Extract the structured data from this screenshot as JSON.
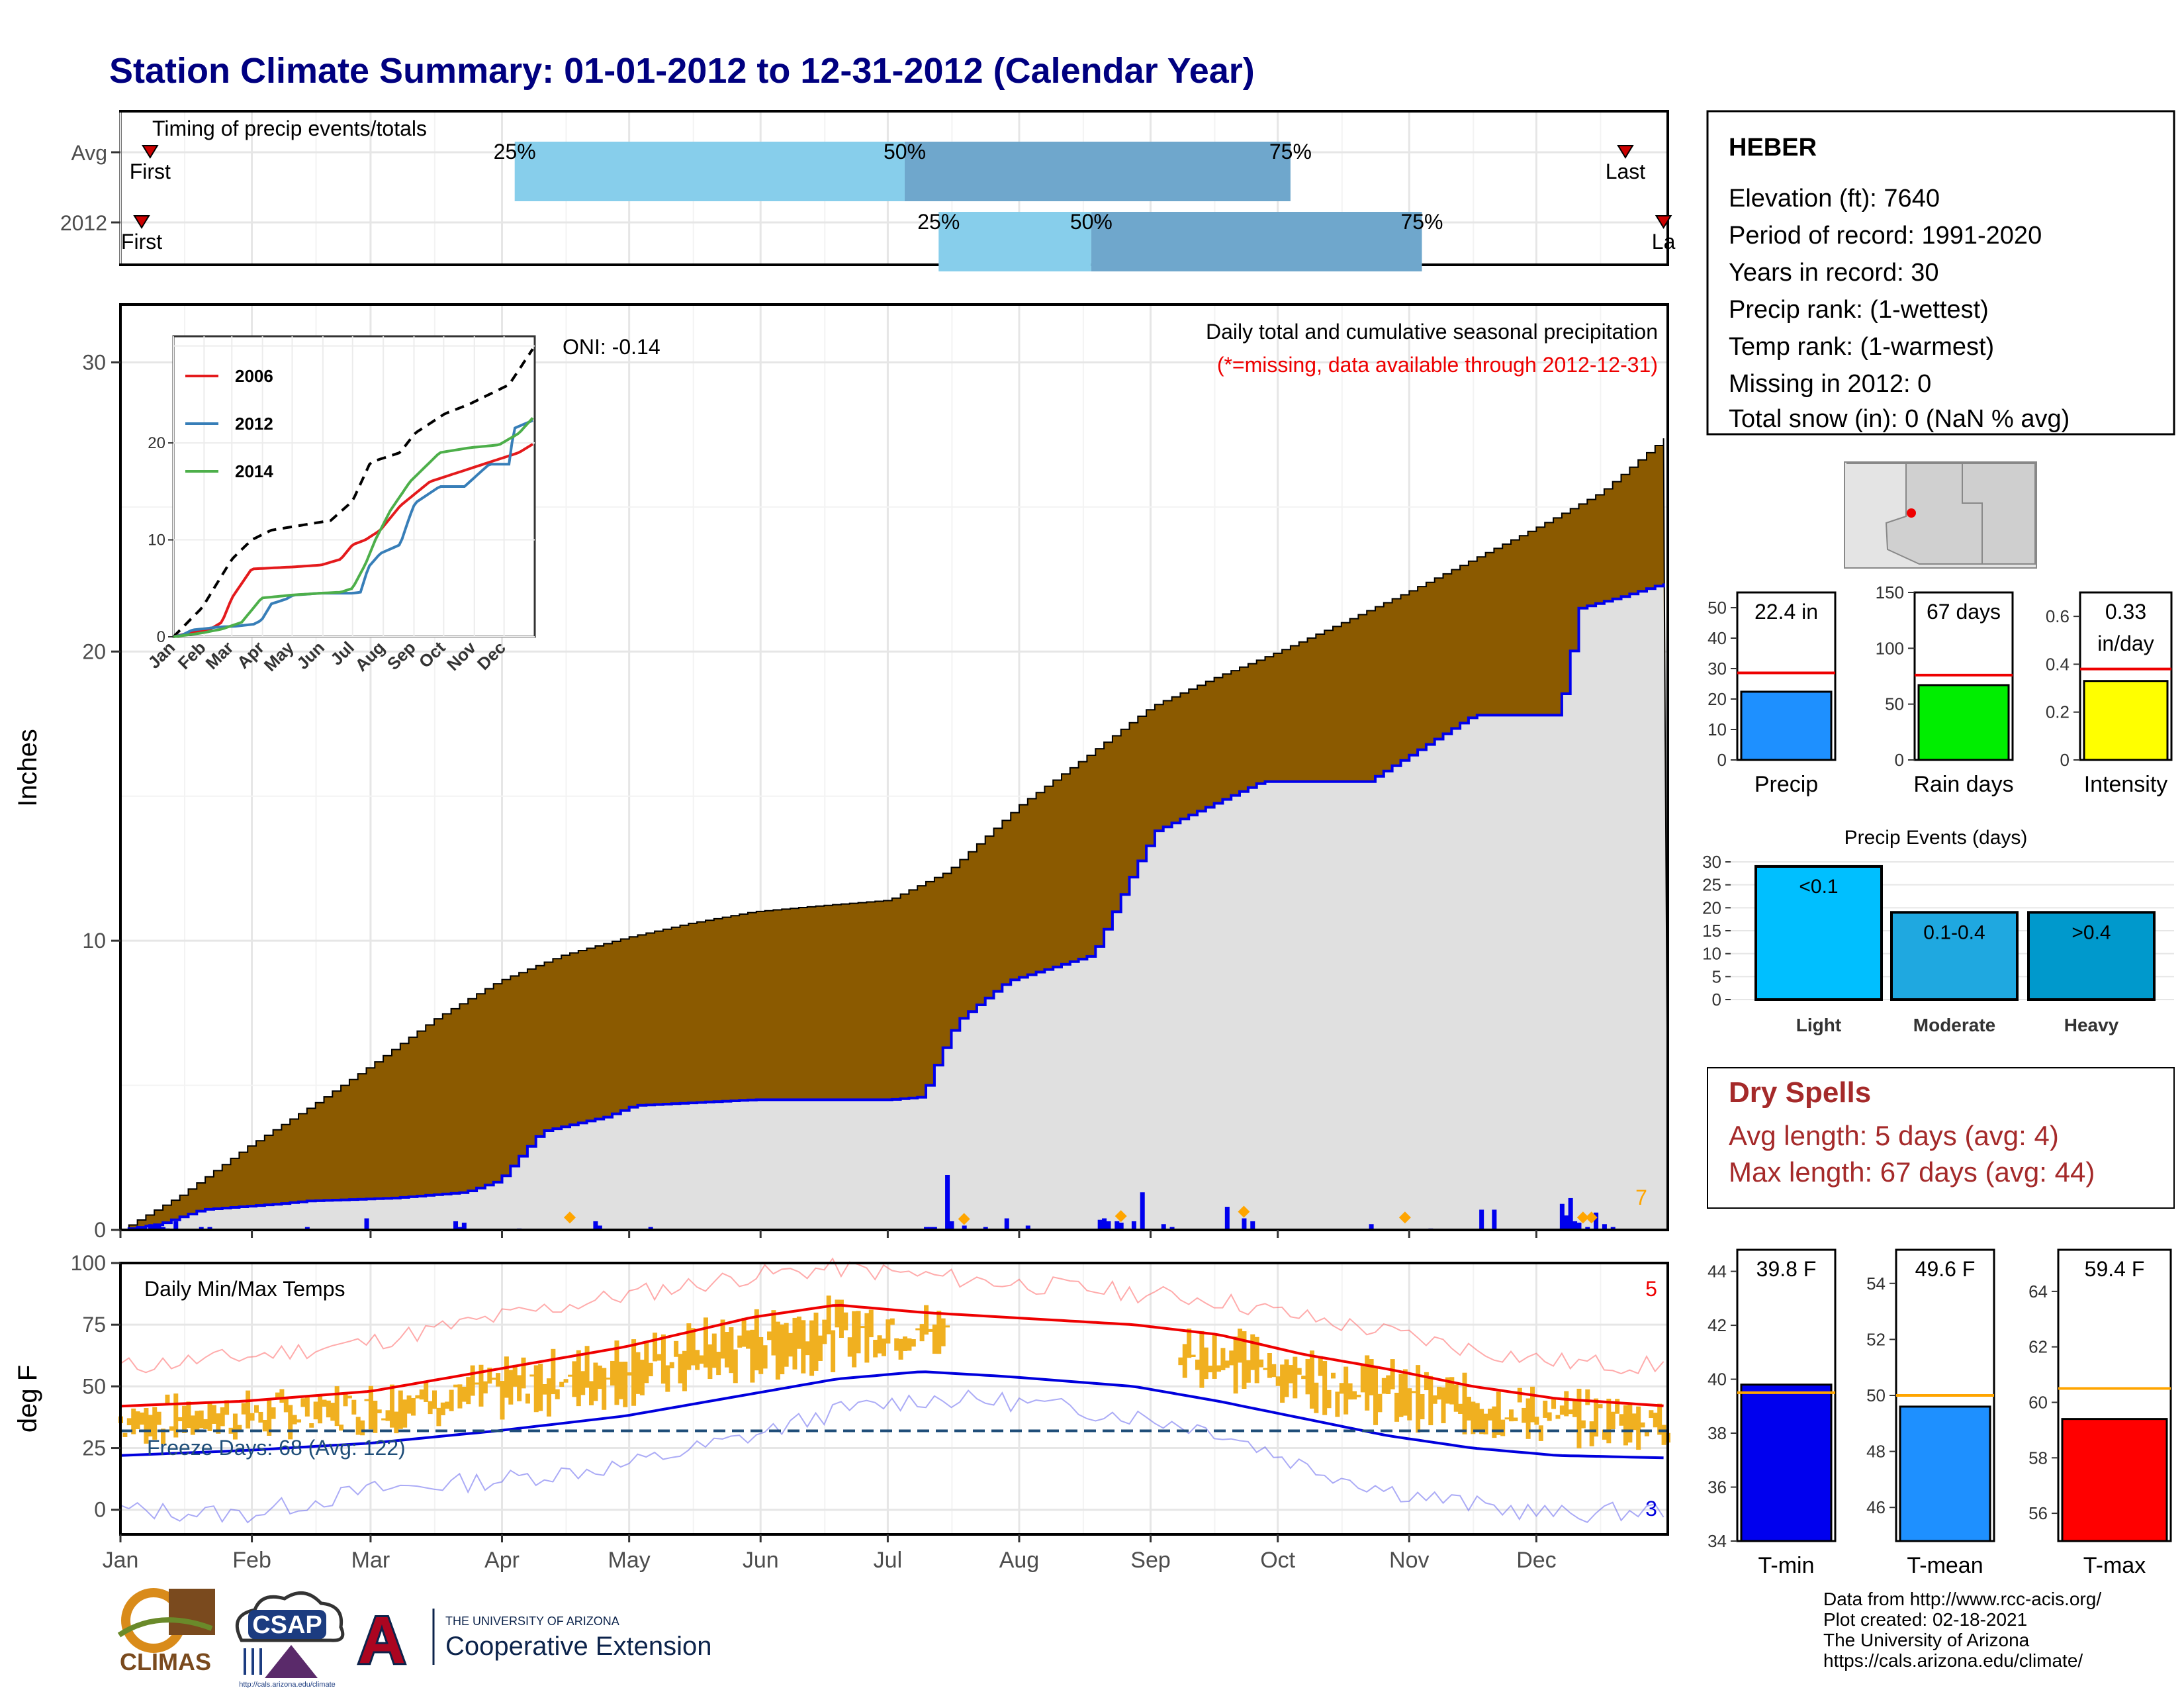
{
  "header": {
    "title": "Station Climate Summary: 01-01-2012 to 12-31-2012 (Calendar Year)"
  },
  "timing_panel": {
    "title": "Timing of precip events/totals",
    "rows": [
      {
        "label": "Avg",
        "first_label": "First",
        "last_label": "Last",
        "first_doy": 8,
        "last_doy": 356,
        "p25": 94,
        "p50": 186,
        "p75": 277
      },
      {
        "label": "2012",
        "first_label": "First",
        "last_label": "La",
        "first_doy": 6,
        "last_doy": 365,
        "p25": 194,
        "p50": 230,
        "p75": 308
      }
    ],
    "pct_labels": [
      "25%",
      "50%",
      "75%"
    ],
    "colors": {
      "q1": "#87ceeb",
      "q2": "#6fa7cc",
      "marker": "#cc0000"
    }
  },
  "precip_panel": {
    "ylabel": "Inches",
    "annotation_title": "Daily total and cumulative seasonal precipitation",
    "annotation_missing": "(*=missing, data available through 2012-12-31)",
    "oni_label": "ONI: -0.14",
    "daily_count_label": "7",
    "colors": {
      "avg_fill": "#8b5a00",
      "year_fill": "#e0e0e0",
      "year_line": "#0000ee",
      "daily_bar": "#0000ee",
      "diamond": "#ffa500"
    }
  },
  "inset": {
    "months": [
      "Jan",
      "Feb",
      "Mar",
      "Apr",
      "May",
      "Jun",
      "Jul",
      "Aug",
      "Sep",
      "Oct",
      "Nov",
      "Dec"
    ],
    "legend": [
      {
        "name": "2006",
        "color": "#e41a1c"
      },
      {
        "name": "2012",
        "color": "#377eb8"
      },
      {
        "name": "2014",
        "color": "#4daf4a"
      }
    ]
  },
  "temp_panel": {
    "ylabel": "deg F",
    "title": "Daily Min/Max Temps",
    "freeze_label": "Freeze Days: 68 (Avg: 122)",
    "count_max_label": "5",
    "count_min_label": "3",
    "months": [
      "Jan",
      "Feb",
      "Mar",
      "Apr",
      "May",
      "Jun",
      "Jul",
      "Aug",
      "Sep",
      "Oct",
      "Nov",
      "Dec"
    ],
    "colors": {
      "range_bar": "#f0b020",
      "max_line": "#ee0000",
      "min_line": "#0000dd",
      "freeze_line": "#1f4e79"
    }
  },
  "station_box": {
    "name": "HEBER",
    "lines": [
      "Elevation (ft): 7640",
      "Period of record: 1991-2020",
      "Years in record: 30",
      "Precip rank:  (1-wettest)",
      "Temp rank:  (1-warmest)",
      "Missing in 2012: 0",
      "Total snow (in): 0 (NaN % avg)"
    ]
  },
  "summary_bars": [
    {
      "label": "Precip",
      "value_label": "22.4 in",
      "value": 22.4,
      "avg": 28.6,
      "ymax": 55,
      "ticks": [
        0,
        10,
        20,
        30,
        40,
        50
      ],
      "color": "#1e90ff"
    },
    {
      "label": "Rain days",
      "value_label": "67 days",
      "value": 67,
      "avg": 76,
      "ymax": 150,
      "ticks": [
        0,
        50,
        100,
        150
      ],
      "color": "#00ee00"
    },
    {
      "label": "Intensity",
      "value_label": "0.33 in/day",
      "value": 0.33,
      "avg": 0.38,
      "ymax": 0.7,
      "ticks": [
        0.0,
        0.2,
        0.4,
        0.6
      ],
      "color": "#ffff00"
    }
  ],
  "precip_events": {
    "title": "Precip Events (days)",
    "ymax": 30,
    "ticks": [
      0,
      5,
      10,
      15,
      20,
      25,
      30
    ],
    "bars": [
      {
        "category": "Light",
        "range_label": "<0.1",
        "value": 29,
        "color": "#00bfff"
      },
      {
        "category": "Moderate",
        "range_label": "0.1-0.4",
        "value": 19,
        "color": "#1fa8e0"
      },
      {
        "category": "Heavy",
        "range_label": ">0.4",
        "value": 19,
        "color": "#0099cc"
      }
    ]
  },
  "dry_spells": {
    "title": "Dry Spells",
    "avg_line": "Avg length: 5 days (avg: 4)",
    "max_line": "Max length: 67 days (avg: 44)"
  },
  "temp_bars": [
    {
      "label": "T-min",
      "value_label": "39.8 F",
      "value": 39.8,
      "avg": 39.5,
      "ymin": 34,
      "ymax": 44.8,
      "ticks": [
        34,
        36,
        38,
        40,
        42,
        44
      ],
      "color": "#0000ee"
    },
    {
      "label": "T-mean",
      "value_label": "49.6 F",
      "value": 49.6,
      "avg": 50.0,
      "ymin": 44.8,
      "ymax": 55.2,
      "ticks": [
        46,
        48,
        50,
        52,
        54
      ],
      "color": "#1e90ff"
    },
    {
      "label": "T-max",
      "value_label": "59.4 F",
      "value": 59.4,
      "avg": 60.5,
      "ymin": 55,
      "ymax": 65.5,
      "ticks": [
        56,
        58,
        60,
        62,
        64
      ],
      "color": "#ff0000"
    }
  ],
  "footer": {
    "credits": [
      "Data from http://www.rcc-acis.org/",
      "Plot created: 02-18-2021",
      "The University of Arizona",
      "https://cals.arizona.edu/climate/"
    ],
    "logo_climas": "CLIMAS",
    "logo_csap": "CSAP",
    "logo_csap_url": "http://cals.arizona.edu/climate",
    "logo_ua_small": "THE UNIVERSITY OF ARIZONA",
    "logo_ua_big": "Cooperative Extension",
    "logo_ua_letter": "A"
  },
  "chart_data": [
    {
      "type": "area",
      "title": "Daily total and cumulative seasonal precipitation",
      "ylabel": "Inches",
      "ylim": [
        0,
        32
      ],
      "x_units": "day of year",
      "series": [
        {
          "name": "avg_cumulative",
          "x": [
            1,
            15,
            31,
            46,
            59,
            75,
            90,
            105,
            120,
            135,
            150,
            165,
            182,
            196,
            213,
            228,
            244,
            259,
            274,
            289,
            305,
            320,
            335,
            350,
            366
          ],
          "values": [
            0,
            1.2,
            2.9,
            4.3,
            5.6,
            7.3,
            8.6,
            9.5,
            10.1,
            10.6,
            11.0,
            11.2,
            11.4,
            12.4,
            14.7,
            16.3,
            18.1,
            19.1,
            20.0,
            21.0,
            22.1,
            23.2,
            24.3,
            25.5,
            27.5
          ]
        },
        {
          "name": "2012_cumulative",
          "x": [
            1,
            10,
            20,
            38,
            45,
            65,
            82,
            90,
            100,
            115,
            122,
            150,
            182,
            190,
            192,
            198,
            210,
            230,
            240,
            245,
            270,
            295,
            320,
            340,
            345,
            355,
            366
          ],
          "values": [
            0,
            0.2,
            0.7,
            0.9,
            1.0,
            1.1,
            1.3,
            1.7,
            3.4,
            3.9,
            4.3,
            4.5,
            4.5,
            4.6,
            5.4,
            7.2,
            8.6,
            9.5,
            12.5,
            13.8,
            15.5,
            15.5,
            17.8,
            17.8,
            21.5,
            21.9,
            22.4
          ]
        }
      ],
      "daily_bars": {
        "doy": [
          8,
          9,
          10,
          11,
          12,
          14,
          20,
          22,
          45,
          59,
          80,
          81,
          82,
          95,
          113,
          114,
          126,
          191,
          192,
          193,
          196,
          197,
          200,
          205,
          210,
          215,
          232,
          233,
          234,
          236,
          237,
          240,
          242,
          247,
          249,
          262,
          266,
          268,
          296,
          310,
          322,
          325,
          341,
          342,
          343,
          344,
          345,
          347,
          349,
          351,
          353
        ],
        "values": [
          0.2,
          0.15,
          0.2,
          0.1,
          0.05,
          0.3,
          0.1,
          0.1,
          0.1,
          0.4,
          0.3,
          0.1,
          0.25,
          0.05,
          0.3,
          0.15,
          0.1,
          0.1,
          0.1,
          0.1,
          1.9,
          0.3,
          0.15,
          0.1,
          0.4,
          0.15,
          0.35,
          0.4,
          0.3,
          0.3,
          0.25,
          0.3,
          1.3,
          0.2,
          0.1,
          0.8,
          0.4,
          0.3,
          0.2,
          0.05,
          0.7,
          0.7,
          0.9,
          0.5,
          1.1,
          0.3,
          0.25,
          0.1,
          0.6,
          0.2,
          0.1
        ]
      },
      "record_markers_doy": [
        107,
        200,
        237,
        266,
        304,
        346,
        348
      ]
    },
    {
      "type": "line",
      "title": "",
      "x_units": "day of year",
      "ylim": [
        0,
        30
      ],
      "series": [
        {
          "name": "avg",
          "x": [
            1,
            30,
            60,
            80,
            100,
            130,
            160,
            182,
            200,
            230,
            245,
            260,
            275,
            300,
            320,
            340,
            366
          ],
          "values": [
            0,
            3,
            8,
            10,
            11,
            11.5,
            12,
            14,
            18,
            19,
            21,
            22,
            23,
            24,
            25,
            26,
            30
          ]
        },
        {
          "name": "2006",
          "x": [
            1,
            20,
            35,
            50,
            60,
            80,
            100,
            120,
            150,
            170,
            182,
            195,
            210,
            230,
            260,
            290,
            320,
            350,
            366
          ],
          "values": [
            0,
            0.5,
            0.6,
            1.5,
            4,
            7,
            7.1,
            7.2,
            7.4,
            8,
            9.5,
            10,
            11,
            13.5,
            16,
            17,
            18,
            19,
            20
          ]
        },
        {
          "name": "2012",
          "x": [
            1,
            10,
            20,
            38,
            45,
            65,
            82,
            90,
            100,
            115,
            122,
            150,
            182,
            190,
            198,
            210,
            230,
            240,
            245,
            270,
            295,
            320,
            340,
            345,
            366
          ],
          "values": [
            0,
            0.2,
            0.7,
            0.9,
            1.0,
            1.1,
            1.3,
            1.7,
            3.4,
            3.9,
            4.3,
            4.5,
            4.5,
            4.6,
            7.2,
            8.6,
            9.5,
            12.5,
            13.8,
            15.5,
            15.5,
            17.8,
            17.8,
            21.5,
            22.4
          ]
        },
        {
          "name": "2014",
          "x": [
            1,
            30,
            50,
            70,
            90,
            120,
            150,
            170,
            182,
            195,
            205,
            220,
            240,
            255,
            270,
            300,
            330,
            350,
            366
          ],
          "values": [
            0,
            0.4,
            0.8,
            1.5,
            4,
            4.3,
            4.5,
            4.6,
            5.0,
            7.5,
            10,
            13,
            16,
            17.5,
            19,
            19.5,
            19.8,
            21,
            22.8
          ]
        }
      ]
    },
    {
      "type": "line",
      "title": "Daily Min/Max Temps",
      "ylabel": "deg F",
      "ylim": [
        -10,
        100
      ],
      "x_units": "day of year",
      "series": [
        {
          "name": "avg_max",
          "x": [
            1,
            30,
            60,
            90,
            120,
            150,
            170,
            190,
            210,
            240,
            260,
            280,
            300,
            320,
            340,
            366
          ],
          "values": [
            42,
            44,
            48,
            57,
            66,
            78,
            83,
            80,
            78,
            75,
            71,
            63,
            57,
            50,
            45,
            42
          ]
        },
        {
          "name": "avg_min",
          "x": [
            1,
            30,
            60,
            90,
            120,
            150,
            170,
            190,
            210,
            240,
            260,
            280,
            300,
            320,
            340,
            366
          ],
          "values": [
            22,
            24,
            27,
            32,
            38,
            47,
            53,
            56,
            54,
            50,
            44,
            37,
            30,
            25,
            22,
            21
          ]
        },
        {
          "name": "record_max",
          "x": [
            1,
            30,
            60,
            90,
            120,
            150,
            170,
            190,
            210,
            240,
            260,
            280,
            300,
            320,
            340,
            366
          ],
          "values": [
            58,
            62,
            68,
            78,
            87,
            95,
            98,
            95,
            92,
            88,
            85,
            78,
            72,
            65,
            60,
            58
          ]
        },
        {
          "name": "record_min",
          "x": [
            1,
            30,
            60,
            90,
            120,
            150,
            170,
            190,
            210,
            240,
            260,
            280,
            300,
            320,
            340,
            366
          ],
          "values": [
            0,
            -2,
            8,
            12,
            18,
            30,
            40,
            45,
            44,
            38,
            32,
            18,
            8,
            2,
            -2,
            0
          ]
        }
      ],
      "freeze_threshold": 32
    },
    {
      "type": "bar",
      "categories": [
        "Precip",
        "Rain days",
        "Intensity"
      ],
      "values": [
        22.4,
        67,
        0.33
      ],
      "averages": [
        28.6,
        76,
        0.38
      ]
    },
    {
      "type": "bar",
      "title": "Precip Events (days)",
      "categories": [
        "Light",
        "Moderate",
        "Heavy"
      ],
      "values": [
        29,
        19,
        19
      ]
    },
    {
      "type": "bar",
      "categories": [
        "T-min",
        "T-mean",
        "T-max"
      ],
      "values": [
        39.8,
        49.6,
        59.4
      ],
      "averages": [
        39.5,
        50.0,
        60.5
      ]
    }
  ]
}
